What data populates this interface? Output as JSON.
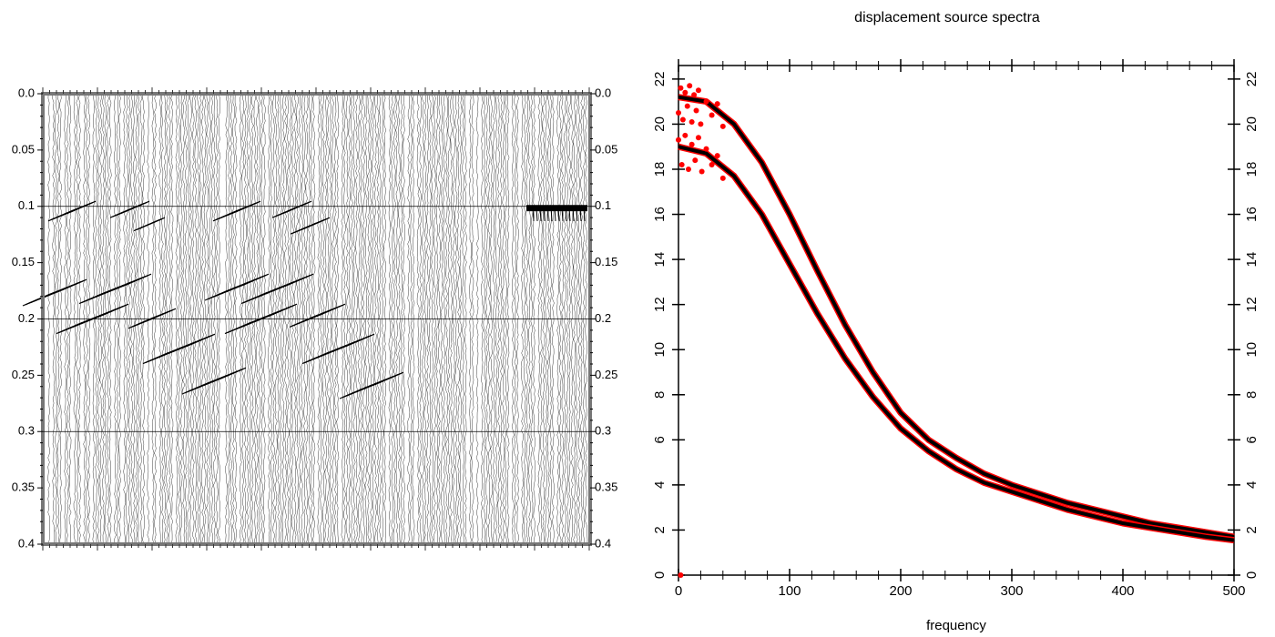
{
  "chart_data": [
    {
      "type": "wiggle",
      "ylim": [
        0,
        0.4
      ],
      "y_inverted": true,
      "yticks": [
        {
          "value": 0,
          "label": "0.0"
        },
        0.05,
        0.1,
        0.15,
        0.2,
        0.25,
        0.3,
        0.35,
        0.4
      ]
    },
    {
      "type": "line",
      "title": "displacement source spectra",
      "x_label": "frequency",
      "xlim": [
        0,
        500
      ],
      "ylim": [
        0,
        22.6
      ],
      "xticks": [
        0,
        100,
        200,
        300,
        400,
        500
      ],
      "yticks": [
        0,
        2,
        4,
        6,
        8,
        10,
        12,
        14,
        16,
        18,
        20,
        22
      ],
      "series": [
        {
          "type": "line",
          "color": "#000000",
          "x": [
            0,
            25,
            50,
            75,
            100,
            125,
            150,
            175,
            200,
            225,
            250,
            275,
            300,
            325,
            350,
            375,
            400,
            425,
            450,
            475,
            500
          ],
          "values": [
            21.2,
            21.0,
            20.0,
            18.3,
            16.0,
            13.5,
            11.1,
            9.0,
            7.2,
            6.0,
            5.2,
            4.5,
            4.0,
            3.6,
            3.2,
            2.9,
            2.6,
            2.3,
            2.1,
            1.9,
            1.7
          ]
        },
        {
          "type": "line",
          "color": "#000000",
          "x": [
            0,
            25,
            50,
            75,
            100,
            125,
            150,
            175,
            200,
            225,
            250,
            275,
            300,
            325,
            350,
            375,
            400,
            425,
            450,
            475,
            500
          ],
          "values": [
            19.0,
            18.7,
            17.7,
            16.0,
            13.8,
            11.6,
            9.6,
            7.9,
            6.5,
            5.5,
            4.7,
            4.1,
            3.7,
            3.3,
            2.9,
            2.6,
            2.3,
            2.1,
            1.9,
            1.7,
            1.55
          ]
        },
        {
          "type": "scatter",
          "color": "#ff0000",
          "x": [
            0,
            2,
            4,
            6,
            8,
            10,
            12,
            14,
            16,
            18,
            20,
            25,
            30,
            35,
            40,
            0,
            3,
            6,
            9,
            12,
            15,
            18,
            21,
            25,
            30,
            35,
            40,
            2
          ],
          "values": [
            20.5,
            21.6,
            20.2,
            21.4,
            20.8,
            21.7,
            20.1,
            21.3,
            20.6,
            21.5,
            20.0,
            21.0,
            20.4,
            20.9,
            19.9,
            19.3,
            18.2,
            19.5,
            18.0,
            19.1,
            18.4,
            19.4,
            17.9,
            18.9,
            18.2,
            18.6,
            17.6,
            0
          ]
        }
      ]
    }
  ]
}
